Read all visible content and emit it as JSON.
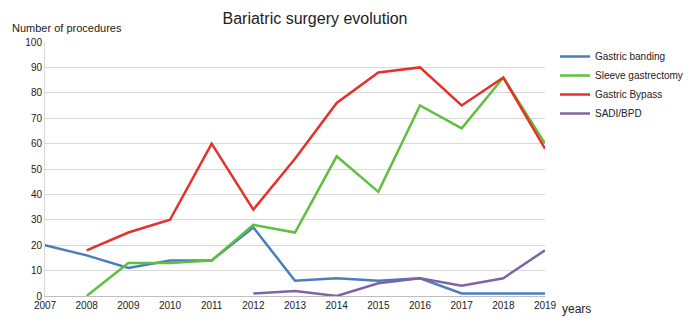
{
  "chart_data": {
    "type": "line",
    "title": "Bariatric surgery evolution",
    "y_label": "Number of procedures",
    "x_label": "years",
    "categories": [
      "2007",
      "2008",
      "2009",
      "2010",
      "2011",
      "2012",
      "2013",
      "2014",
      "2015",
      "2016",
      "2017",
      "2018",
      "2019"
    ],
    "series": [
      {
        "name": "Gastric banding",
        "color": "#4a7ebb",
        "values": [
          20,
          16,
          11,
          14,
          14,
          27,
          6,
          7,
          6,
          7,
          1,
          1,
          1
        ]
      },
      {
        "name": "Sleeve gastrectomy",
        "color": "#5fbf3f",
        "values": [
          null,
          0,
          13,
          13,
          14,
          28,
          25,
          55,
          41,
          75,
          66,
          86,
          60
        ]
      },
      {
        "name": "Gastric Bypass",
        "color": "#e8302a",
        "values": [
          null,
          18,
          25,
          30,
          60,
          34,
          54,
          76,
          88,
          90,
          75,
          86,
          58
        ]
      },
      {
        "name": "SADI/BPD",
        "color": "#8064a2",
        "values": [
          null,
          null,
          null,
          null,
          null,
          1,
          2,
          0,
          5,
          7,
          4,
          7,
          18
        ]
      }
    ],
    "ylim": [
      0,
      100
    ],
    "yticks": [
      0,
      10,
      20,
      30,
      40,
      50,
      60,
      70,
      80,
      90,
      100
    ],
    "grid": true,
    "legend": "top right"
  }
}
